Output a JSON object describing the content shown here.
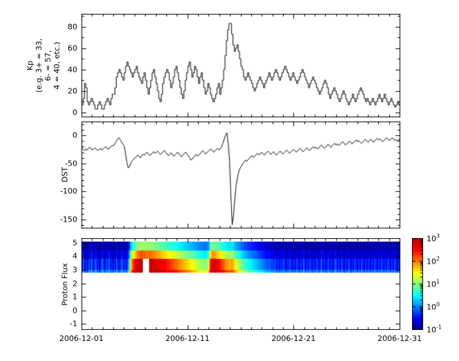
{
  "colors": {
    "line": "#000000",
    "frame": "#000000",
    "background": "#ffffff",
    "jet_stops": [
      [
        0.0,
        0,
        0,
        131
      ],
      [
        0.125,
        0,
        0,
        255
      ],
      [
        0.375,
        0,
        255,
        255
      ],
      [
        0.625,
        255,
        255,
        0
      ],
      [
        0.875,
        255,
        0,
        0
      ],
      [
        1.0,
        200,
        0,
        0
      ]
    ]
  },
  "chart_data": {
    "x_axis": {
      "start": "2006-12-01",
      "end": "2006-12-31",
      "span_days": 30,
      "samples_per_day": 8,
      "major_tick_days": [
        0,
        10,
        20,
        30
      ],
      "tick_labels": [
        {
          "day": 0,
          "label": "2006-12-01"
        },
        {
          "day": 10,
          "label": "2006-12-11"
        },
        {
          "day": 20,
          "label": "2006-12-21"
        },
        {
          "day": 30,
          "label": "2006-12-31"
        }
      ]
    },
    "charts": [
      {
        "type": "line",
        "subtype": "step",
        "name": "kp",
        "ylabel": "Kp (e.g. 3+ = 33, 6- = 57, 4 = 40, etc.)",
        "ylabel_multiline": "Kp\n(e.g. 3+ = 33,\n6- = 57,\n4 = 40, etc.)",
        "ylim": [
          -4,
          92
        ],
        "yticks": [
          0,
          20,
          40,
          60,
          80
        ],
        "y_minor_step": 10,
        "values": [
          7,
          13,
          27,
          23,
          10,
          7,
          10,
          13,
          10,
          7,
          3,
          3,
          7,
          10,
          7,
          3,
          3,
          7,
          10,
          13,
          10,
          7,
          13,
          17,
          17,
          23,
          33,
          37,
          40,
          37,
          33,
          30,
          37,
          43,
          47,
          43,
          40,
          37,
          33,
          37,
          40,
          43,
          37,
          33,
          30,
          27,
          33,
          37,
          30,
          23,
          17,
          23,
          30,
          37,
          40,
          33,
          27,
          20,
          13,
          10,
          17,
          27,
          33,
          37,
          40,
          37,
          30,
          23,
          27,
          33,
          40,
          43,
          37,
          30,
          23,
          17,
          13,
          20,
          30,
          37,
          43,
          47,
          40,
          33,
          37,
          43,
          40,
          33,
          27,
          33,
          37,
          30,
          23,
          17,
          20,
          27,
          23,
          17,
          13,
          10,
          13,
          17,
          23,
          27,
          17,
          23,
          30,
          40,
          53,
          67,
          77,
          83,
          83,
          73,
          63,
          57,
          60,
          63,
          57,
          50,
          43,
          40,
          33,
          30,
          33,
          37,
          33,
          30,
          27,
          23,
          20,
          23,
          27,
          30,
          33,
          30,
          27,
          23,
          27,
          30,
          33,
          37,
          33,
          30,
          33,
          37,
          40,
          37,
          33,
          30,
          33,
          37,
          40,
          43,
          40,
          37,
          33,
          30,
          33,
          37,
          33,
          30,
          27,
          30,
          33,
          37,
          40,
          37,
          33,
          30,
          27,
          23,
          27,
          30,
          33,
          30,
          27,
          23,
          20,
          17,
          20,
          23,
          27,
          30,
          27,
          23,
          17,
          13,
          17,
          20,
          23,
          20,
          17,
          13,
          10,
          13,
          17,
          20,
          17,
          13,
          10,
          7,
          10,
          13,
          17,
          13,
          10,
          13,
          17,
          20,
          23,
          20,
          17,
          13,
          10,
          13,
          10,
          7,
          10,
          13,
          10,
          7,
          10,
          13,
          17,
          13,
          10,
          13,
          17,
          13,
          10,
          7,
          10,
          13,
          10,
          7,
          5,
          7,
          10,
          7
        ]
      },
      {
        "type": "line",
        "subtype": "line",
        "name": "dst",
        "ylabel": "DST",
        "ylim": [
          -165,
          25
        ],
        "yticks": [
          0,
          -50,
          -100,
          -150
        ],
        "y_minor_step": 10,
        "values": [
          -22,
          -25,
          -27,
          -24,
          -26,
          -23,
          -21,
          -24,
          -26,
          -24,
          -22,
          -25,
          -27,
          -25,
          -23,
          -26,
          -24,
          -22,
          -20,
          -23,
          -25,
          -22,
          -20,
          -18,
          -18,
          -14,
          -10,
          -6,
          -4,
          -8,
          -12,
          -16,
          -20,
          -35,
          -50,
          -58,
          -55,
          -48,
          -45,
          -42,
          -40,
          -38,
          -35,
          -37,
          -40,
          -36,
          -33,
          -35,
          -32,
          -30,
          -33,
          -36,
          -34,
          -31,
          -29,
          -32,
          -30,
          -28,
          -31,
          -34,
          -32,
          -29,
          -27,
          -30,
          -33,
          -36,
          -34,
          -31,
          -34,
          -37,
          -35,
          -32,
          -30,
          -33,
          -36,
          -38,
          -35,
          -32,
          -30,
          -33,
          -36,
          -40,
          -44,
          -42,
          -39,
          -36,
          -34,
          -37,
          -35,
          -32,
          -29,
          -27,
          -30,
          -33,
          -31,
          -28,
          -26,
          -24,
          -27,
          -30,
          -28,
          -25,
          -23,
          -26,
          -24,
          -20,
          -14,
          -6,
          0,
          5,
          -15,
          -45,
          -110,
          -160,
          -142,
          -112,
          -88,
          -74,
          -65,
          -58,
          -54,
          -50,
          -47,
          -44,
          -46,
          -43,
          -40,
          -38,
          -36,
          -39,
          -37,
          -34,
          -32,
          -35,
          -33,
          -30,
          -32,
          -35,
          -33,
          -30,
          -28,
          -31,
          -34,
          -31,
          -29,
          -32,
          -35,
          -33,
          -30,
          -28,
          -31,
          -33,
          -31,
          -28,
          -26,
          -29,
          -32,
          -30,
          -27,
          -25,
          -27,
          -30,
          -28,
          -25,
          -23,
          -26,
          -29,
          -27,
          -25,
          -22,
          -24,
          -27,
          -25,
          -22,
          -20,
          -23,
          -21,
          -24,
          -22,
          -19,
          -17,
          -20,
          -23,
          -21,
          -19,
          -16,
          -18,
          -21,
          -19,
          -16,
          -14,
          -17,
          -15,
          -18,
          -16,
          -13,
          -11,
          -14,
          -17,
          -15,
          -13,
          -10,
          -12,
          -15,
          -13,
          -10,
          -8,
          -11,
          -9,
          -12,
          -14,
          -12,
          -9,
          -7,
          -10,
          -12,
          -10,
          -7,
          -9,
          -12,
          -10,
          -7,
          -5,
          -8,
          -6,
          -9,
          -11,
          -9,
          -6,
          -4,
          -7,
          -9,
          -7,
          -4,
          -6,
          -9,
          -7,
          -10,
          -8,
          -5
        ]
      },
      {
        "type": "heatmap",
        "name": "proton_flux",
        "ylabel": "Proton Flux",
        "ylim": [
          -1.4,
          5.35
        ],
        "yticks": [
          5,
          4,
          3,
          2,
          1,
          0,
          -1
        ],
        "y_minor_step": 0,
        "color_log10_range": [
          -1,
          3
        ],
        "band": {
          "rows": [
            {
              "y_top": 5.1,
              "y_bottom": 4.45,
              "scale": 0.55,
              "offset": -0.5
            },
            {
              "y_top": 4.45,
              "y_bottom": 3.8,
              "scale": 0.8,
              "offset": -0.2
            },
            {
              "y_top": 3.8,
              "y_bottom": 3.0,
              "scale": 1.0,
              "offset": 0.2
            },
            {
              "y_top": 3.0,
              "y_bottom": 2.8,
              "scale": 1.0,
              "offset": 0.55
            }
          ],
          "data_gap": {
            "col_start": 46,
            "col_end": 50,
            "row_indices": [
              2,
              3
            ]
          },
          "log10_values": [
            -0.7,
            -0.3,
            -0.8,
            -0.5,
            -0.9,
            -0.4,
            -0.6,
            -0.2,
            -0.8,
            -0.5,
            -0.3,
            -0.7,
            -0.4,
            -0.9,
            -0.6,
            -0.3,
            -0.5,
            -0.8,
            -0.4,
            -0.6,
            -0.2,
            -0.7,
            -0.5,
            -0.8,
            -0.4,
            -0.7,
            -0.3,
            -0.6,
            -0.8,
            -0.5,
            -0.3,
            -0.6,
            -0.5,
            -0.7,
            -0.4,
            0.2,
            0.9,
            1.5,
            1.9,
            2.2,
            2.4,
            2.6,
            2.8,
            2.9,
            3.0,
            3.0,
            2.9,
            2.9,
            2.9,
            2.8,
            2.8,
            2.9,
            2.8,
            2.8,
            2.7,
            2.7,
            2.6,
            2.6,
            2.5,
            2.5,
            2.4,
            2.4,
            2.3,
            2.3,
            2.2,
            2.2,
            2.1,
            2.1,
            2.0,
            2.0,
            1.9,
            1.9,
            1.8,
            1.8,
            1.7,
            1.7,
            1.6,
            1.6,
            1.5,
            1.5,
            1.4,
            1.4,
            1.3,
            1.3,
            1.2,
            1.2,
            1.1,
            1.1,
            1.0,
            1.0,
            0.9,
            0.9,
            0.8,
            0.8,
            0.9,
            1.1,
            1.6,
            2.2,
            2.6,
            2.7,
            2.6,
            2.5,
            2.4,
            2.3,
            2.2,
            2.1,
            2.0,
            1.9,
            1.8,
            1.7,
            1.7,
            1.6,
            1.6,
            1.7,
            1.6,
            1.4,
            1.2,
            1.1,
            1.0,
            0.9,
            0.8,
            0.7,
            0.6,
            0.5,
            0.5,
            0.4,
            0.3,
            0.3,
            0.2,
            0.2,
            0.1,
            0.1,
            0.0,
            0.0,
            -0.1,
            -0.1,
            -0.2,
            -0.2,
            -0.3,
            -0.3,
            -0.4,
            -0.3,
            -0.4,
            -0.5,
            -0.4,
            -0.5,
            -0.4,
            -0.6,
            -0.5,
            -0.7,
            -0.5,
            -0.6,
            -0.4,
            -0.6,
            -0.8,
            -0.5,
            -0.7,
            -0.4,
            -0.6,
            -0.8,
            -0.5,
            -0.7,
            -0.4,
            -0.6,
            -0.8,
            -0.5,
            -0.7,
            -0.3,
            -0.6,
            -0.8,
            -0.5,
            -0.7,
            -0.4,
            -0.6,
            -0.8,
            -0.5,
            -0.7,
            -0.4,
            -0.6,
            -0.8,
            -0.5,
            -0.3,
            -0.7,
            -0.5,
            -0.8,
            -0.6,
            -0.4,
            -0.7,
            -0.5,
            -0.8,
            -0.6,
            -0.3,
            -0.5,
            -0.7,
            -0.5,
            -0.8,
            -0.4,
            -0.6,
            -0.9,
            -0.5,
            -0.7,
            -0.4,
            -0.6,
            -0.8,
            -0.5,
            -0.7,
            -0.4,
            -0.6,
            -0.8,
            -0.5,
            -0.7,
            -0.4,
            -0.6,
            -0.8,
            -0.5,
            -0.7,
            -0.4,
            -0.6,
            -0.8,
            -0.5,
            -0.7,
            -0.4,
            -0.6,
            -0.8,
            -0.5,
            -0.7,
            -0.4,
            -0.6,
            -0.8,
            -0.5,
            -0.7,
            -0.4,
            -0.6,
            -0.8,
            -0.5,
            -0.7,
            -0.4,
            -0.6,
            -0.8,
            -0.5
          ]
        }
      }
    ],
    "colorbar": {
      "scale": "log",
      "label_base": "10",
      "ticks_exponents": [
        3,
        2,
        1,
        0,
        -1
      ]
    }
  }
}
